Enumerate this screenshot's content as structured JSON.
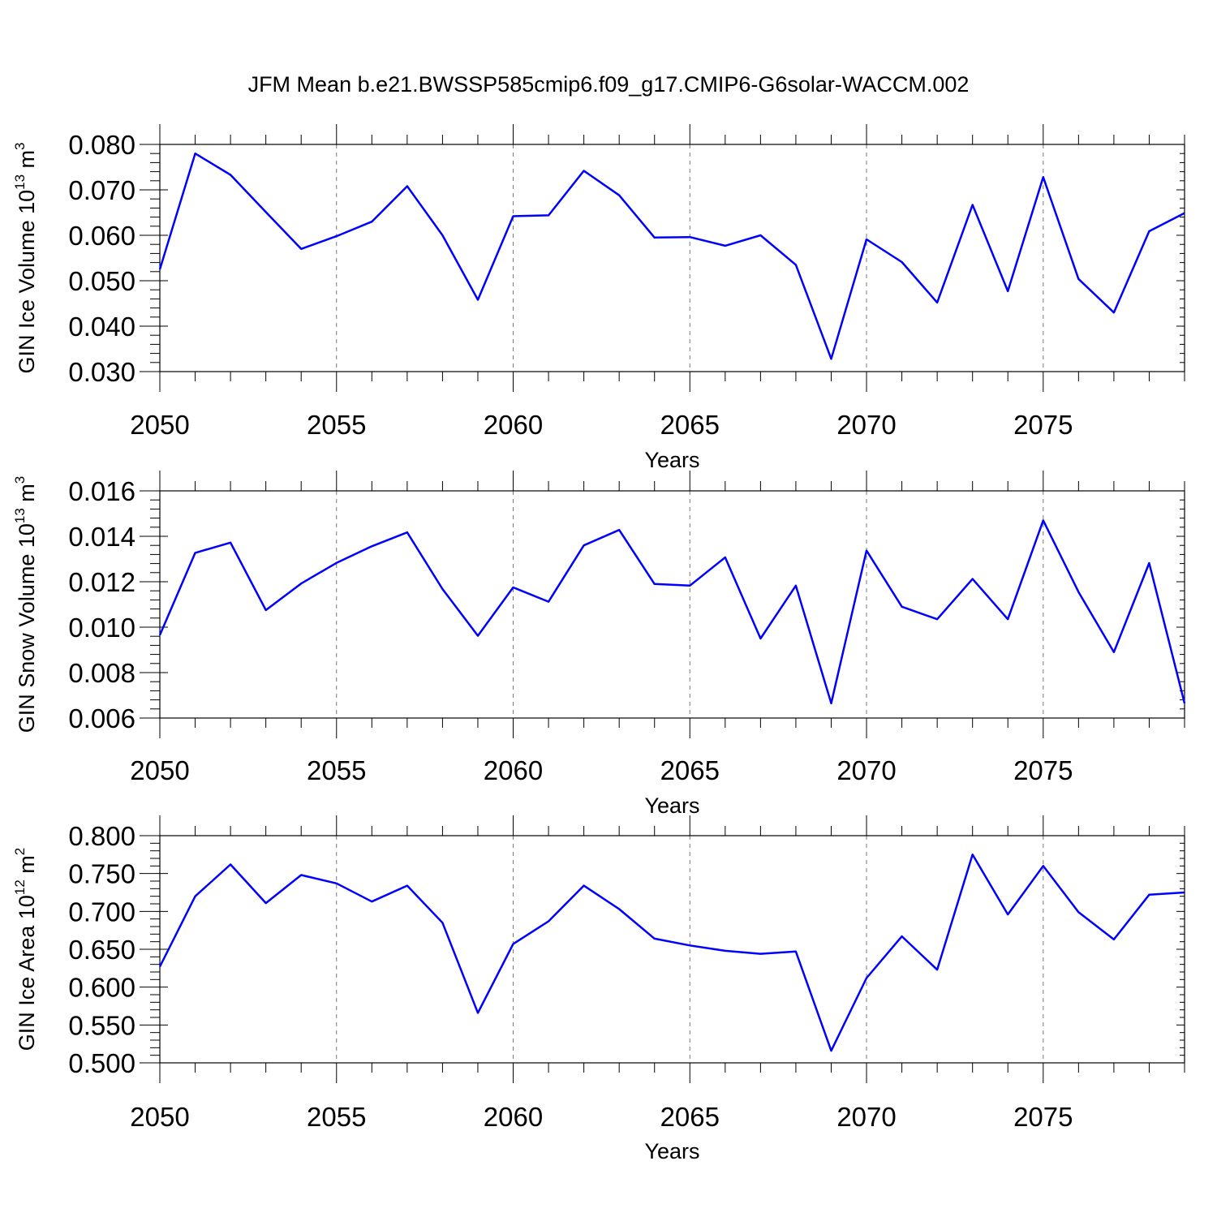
{
  "title": "JFM Mean b.e21.BWSSP585cmip6.f09_g17.CMIP6-G6solar-WACCM.002",
  "line_color": "#0000ff",
  "chart_data": [
    {
      "type": "line",
      "ylabel_main": "GIN Ice Volume 10",
      "ylabel_exp": "13",
      "ylabel_unit": " m",
      "ylabel_unit_exp": "3",
      "xlabel": "Years",
      "xlim": [
        2050,
        2079
      ],
      "ylim": [
        0.03,
        0.08
      ],
      "x_ticks": [
        "2050",
        "2055",
        "2060",
        "2065",
        "2070",
        "2075"
      ],
      "y_ticks": [
        "0.030",
        "0.040",
        "0.050",
        "0.060",
        "0.070",
        "0.080"
      ],
      "grid_x": true,
      "series": [
        {
          "name": "GIN Ice Volume",
          "x": [
            2050,
            2051,
            2052,
            2053,
            2054,
            2055,
            2056,
            2057,
            2058,
            2059,
            2060,
            2061,
            2062,
            2063,
            2064,
            2065,
            2066,
            2067,
            2068,
            2069,
            2070,
            2071,
            2072,
            2073,
            2074,
            2075,
            2076,
            2077,
            2078,
            2079
          ],
          "values": [
            0.0525,
            0.078,
            0.0733,
            0.0651,
            0.057,
            0.0598,
            0.063,
            0.0708,
            0.06,
            0.0458,
            0.0642,
            0.0644,
            0.0742,
            0.0688,
            0.0595,
            0.0596,
            0.0577,
            0.06,
            0.0535,
            0.0328,
            0.0591,
            0.0541,
            0.0452,
            0.0667,
            0.0477,
            0.0728,
            0.0504,
            0.043,
            0.0609,
            0.0649
          ]
        }
      ]
    },
    {
      "type": "line",
      "ylabel_main": "GIN Snow Volume 10",
      "ylabel_exp": "13",
      "ylabel_unit": " m",
      "ylabel_unit_exp": "3",
      "xlabel": "Years",
      "xlim": [
        2050,
        2079
      ],
      "ylim": [
        0.006,
        0.016
      ],
      "x_ticks": [
        "2050",
        "2055",
        "2060",
        "2065",
        "2070",
        "2075"
      ],
      "y_ticks": [
        "0.006",
        "0.008",
        "0.010",
        "0.012",
        "0.014",
        "0.016"
      ],
      "grid_x": true,
      "series": [
        {
          "name": "GIN Snow Volume",
          "x": [
            2050,
            2051,
            2052,
            2053,
            2054,
            2055,
            2056,
            2057,
            2058,
            2059,
            2060,
            2061,
            2062,
            2063,
            2064,
            2065,
            2066,
            2067,
            2068,
            2069,
            2070,
            2071,
            2072,
            2073,
            2074,
            2075,
            2076,
            2077,
            2078,
            2079
          ],
          "values": [
            0.00965,
            0.01327,
            0.01372,
            0.01075,
            0.01192,
            0.01283,
            0.01356,
            0.01417,
            0.01168,
            0.00962,
            0.01175,
            0.01112,
            0.0136,
            0.01428,
            0.0119,
            0.01183,
            0.01307,
            0.0095,
            0.01183,
            0.00665,
            0.01337,
            0.0109,
            0.01035,
            0.01212,
            0.01035,
            0.0147,
            0.01155,
            0.0089,
            0.01282,
            0.00665
          ]
        }
      ]
    },
    {
      "type": "line",
      "ylabel_main": "GIN Ice Area 10",
      "ylabel_exp": "12",
      "ylabel_unit": " m",
      "ylabel_unit_exp": "2",
      "xlabel": "Years",
      "xlim": [
        2050,
        2079
      ],
      "ylim": [
        0.5,
        0.8
      ],
      "x_ticks": [
        "2050",
        "2055",
        "2060",
        "2065",
        "2070",
        "2075"
      ],
      "y_ticks": [
        "0.500",
        "0.550",
        "0.600",
        "0.650",
        "0.700",
        "0.750",
        "0.800"
      ],
      "grid_x": true,
      "series": [
        {
          "name": "GIN Ice Area",
          "x": [
            2050,
            2051,
            2052,
            2053,
            2054,
            2055,
            2056,
            2057,
            2058,
            2059,
            2060,
            2061,
            2062,
            2063,
            2064,
            2065,
            2066,
            2067,
            2068,
            2069,
            2070,
            2071,
            2072,
            2073,
            2074,
            2075,
            2076,
            2077,
            2078,
            2079
          ],
          "values": [
            0.627,
            0.72,
            0.762,
            0.711,
            0.748,
            0.737,
            0.713,
            0.734,
            0.685,
            0.566,
            0.657,
            0.687,
            0.734,
            0.703,
            0.664,
            0.655,
            0.648,
            0.644,
            0.647,
            0.516,
            0.612,
            0.667,
            0.623,
            0.775,
            0.696,
            0.76,
            0.699,
            0.663,
            0.722,
            0.725
          ]
        }
      ]
    }
  ]
}
